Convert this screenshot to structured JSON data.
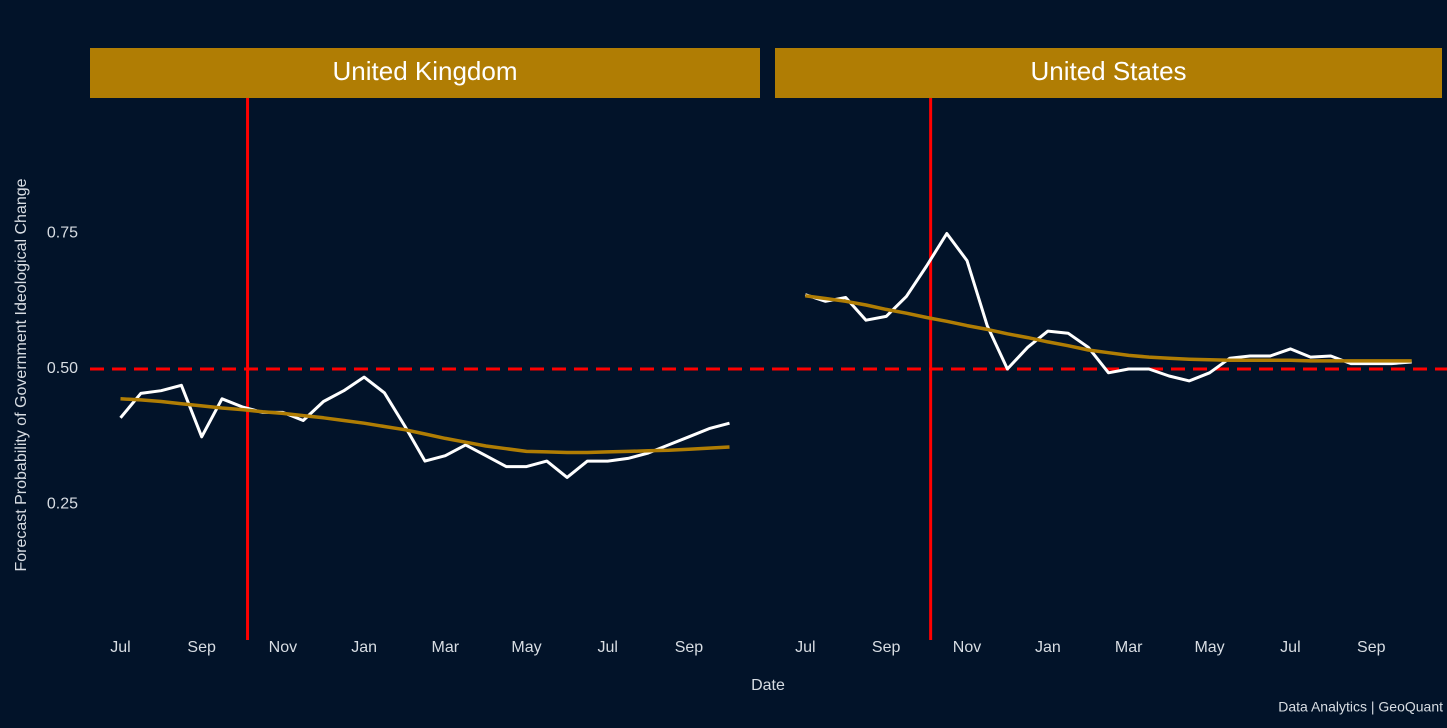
{
  "ylabel": "Forecast Probability of Government Ideological Change",
  "xlabel": "Date",
  "caption": "Data Analytics | GeoQuant",
  "chart_data": [
    {
      "type": "line",
      "title": "United Kingdom",
      "x": [
        0,
        0.5,
        1,
        1.5,
        2,
        2.5,
        3,
        3.5,
        4,
        4.5,
        5,
        5.5,
        6,
        6.5,
        7,
        7.5,
        8,
        8.5,
        9,
        9.5,
        10,
        10.5,
        11,
        11.5,
        12,
        12.5,
        13,
        13.5,
        14,
        14.5,
        15
      ],
      "series": [
        {
          "color": "#ffffff",
          "values": [
            0.41,
            0.455,
            0.46,
            0.47,
            0.375,
            0.445,
            0.43,
            0.42,
            0.42,
            0.405,
            0.44,
            0.46,
            0.485,
            0.456,
            0.395,
            0.33,
            0.34,
            0.36,
            0.34,
            0.32,
            0.32,
            0.33,
            0.3,
            0.33,
            0.33,
            0.335,
            0.345,
            0.36,
            0.375,
            0.39,
            0.4
          ]
        },
        {
          "color": "#b07d04",
          "values": [
            0.445,
            0.443,
            0.44,
            0.436,
            0.432,
            0.428,
            0.425,
            0.421,
            0.418,
            0.414,
            0.41,
            0.405,
            0.4,
            0.394,
            0.388,
            0.38,
            0.372,
            0.365,
            0.358,
            0.353,
            0.348,
            0.347,
            0.346,
            0.346,
            0.347,
            0.348,
            0.349,
            0.35,
            0.352,
            0.354,
            0.356
          ]
        }
      ],
      "xlim": [
        -0.75,
        15.75
      ],
      "xticks": [
        {
          "value": 0,
          "label": "Jul"
        },
        {
          "value": 2,
          "label": "Sep"
        },
        {
          "value": 4,
          "label": "Nov"
        },
        {
          "value": 6,
          "label": "Jan"
        },
        {
          "value": 8,
          "label": "Mar"
        },
        {
          "value": 10,
          "label": "May"
        },
        {
          "value": 12,
          "label": "Jul"
        },
        {
          "value": 14,
          "label": "Sep"
        }
      ],
      "ylim": [
        0,
        1
      ],
      "yticks": [
        {
          "value": 0.25,
          "label": "0.25"
        },
        {
          "value": 0.5,
          "label": "0.50"
        },
        {
          "value": 0.75,
          "label": "0.75"
        }
      ],
      "vline": 3.13,
      "hline": 0.5,
      "ref_color": "#ff0000"
    },
    {
      "type": "line",
      "title": "United States",
      "x": [
        0,
        0.5,
        1,
        1.5,
        2,
        2.5,
        3,
        3.5,
        4,
        4.5,
        5,
        5.5,
        6,
        6.5,
        7,
        7.5,
        8,
        8.5,
        9,
        9.5,
        10,
        10.5,
        11,
        11.5,
        12,
        12.5,
        13,
        13.5,
        14,
        14.5,
        15
      ],
      "series": [
        {
          "color": "#ffffff",
          "values": [
            0.637,
            0.625,
            0.632,
            0.59,
            0.597,
            0.634,
            0.69,
            0.75,
            0.7,
            0.58,
            0.5,
            0.54,
            0.57,
            0.566,
            0.54,
            0.493,
            0.5,
            0.5,
            0.487,
            0.478,
            0.493,
            0.52,
            0.524,
            0.524,
            0.537,
            0.522,
            0.524,
            0.51,
            0.51,
            0.51,
            0.513
          ]
        },
        {
          "color": "#b07d04",
          "values": [
            0.635,
            0.63,
            0.625,
            0.618,
            0.61,
            0.603,
            0.595,
            0.588,
            0.58,
            0.573,
            0.565,
            0.558,
            0.55,
            0.543,
            0.535,
            0.53,
            0.525,
            0.522,
            0.52,
            0.518,
            0.517,
            0.516,
            0.516,
            0.516,
            0.516,
            0.515,
            0.515,
            0.515,
            0.515,
            0.515,
            0.515
          ]
        }
      ],
      "xlim": [
        -0.75,
        15.75
      ],
      "xticks": [
        {
          "value": 0,
          "label": "Jul"
        },
        {
          "value": 2,
          "label": "Sep"
        },
        {
          "value": 4,
          "label": "Nov"
        },
        {
          "value": 6,
          "label": "Jan"
        },
        {
          "value": 8,
          "label": "Mar"
        },
        {
          "value": 10,
          "label": "May"
        },
        {
          "value": 12,
          "label": "Jul"
        },
        {
          "value": 14,
          "label": "Sep"
        }
      ],
      "ylim": [
        0,
        1
      ],
      "vline": 3.1,
      "hline": 0.5,
      "ref_color": "#ff0000"
    }
  ]
}
